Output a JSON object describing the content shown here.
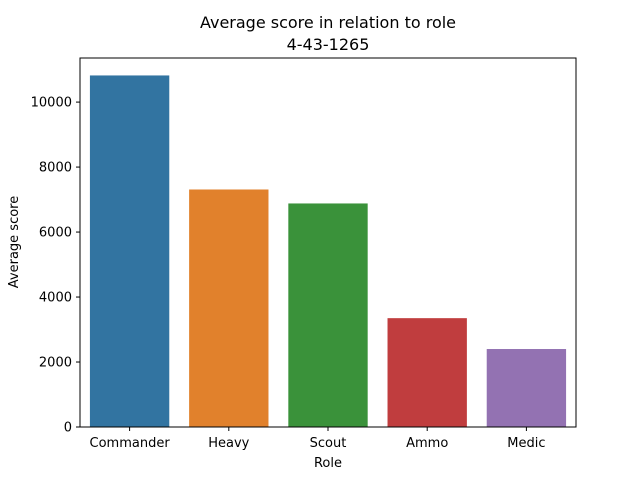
{
  "chart_data": {
    "type": "bar",
    "title": "Average score in relation to role",
    "subtitle": "4-43-1265",
    "xlabel": "Role",
    "ylabel": "Average score",
    "categories": [
      "Commander",
      "Heavy",
      "Scout",
      "Ammo",
      "Medic"
    ],
    "values": [
      10820,
      7310,
      6880,
      3350,
      2400
    ],
    "colors": [
      "#3274a1",
      "#e1812c",
      "#3a923a",
      "#c03d3e",
      "#9372b2"
    ],
    "ylim": [
      0,
      11357
    ],
    "yticks": [
      0,
      2000,
      4000,
      6000,
      8000,
      10000
    ],
    "ytick_labels": [
      "0",
      "2000",
      "4000",
      "6000",
      "8000",
      "10000"
    ],
    "grid": false,
    "legend": "none"
  }
}
